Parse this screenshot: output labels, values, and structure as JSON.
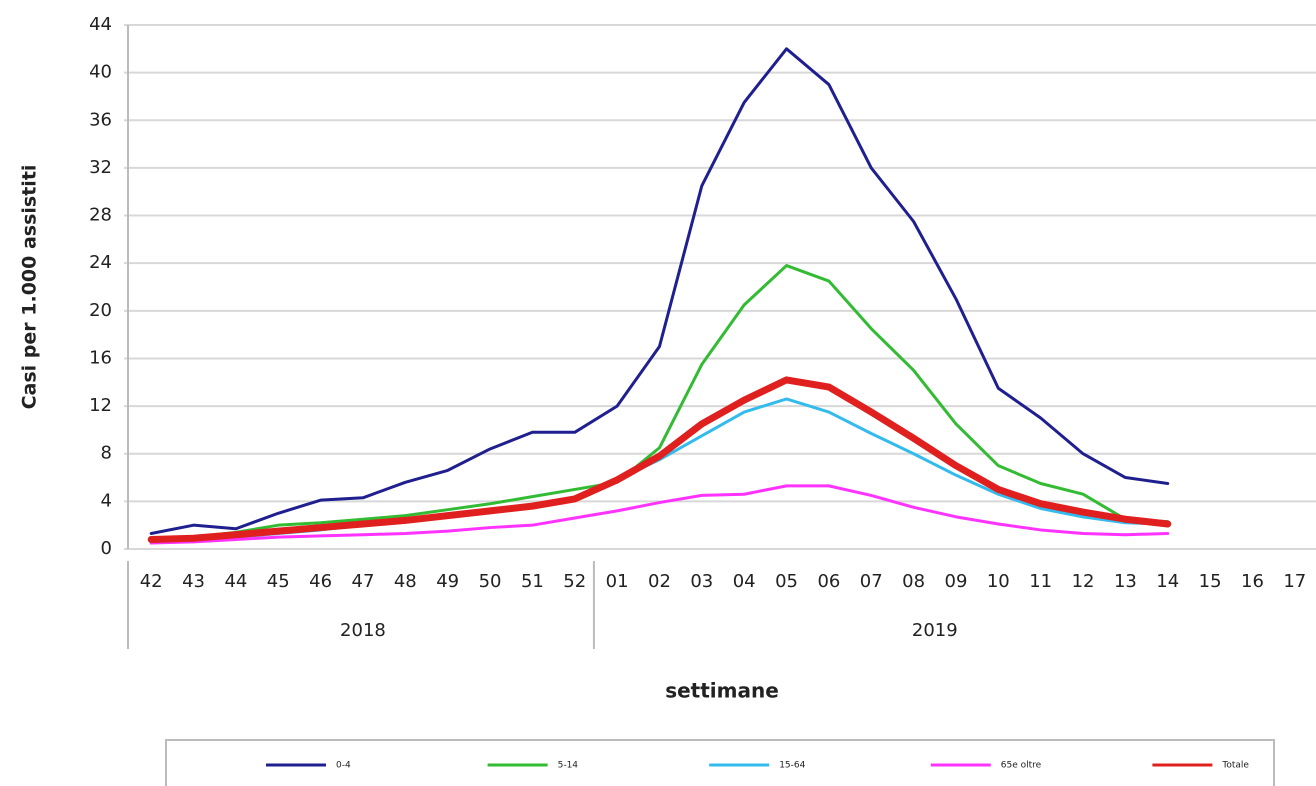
{
  "chart_data": {
    "type": "line",
    "y_label": "Casi per 1.000 assistiti",
    "x_label": "settimane",
    "group_labels": [
      "2018",
      "2019"
    ],
    "categories": [
      "42",
      "43",
      "44",
      "45",
      "46",
      "47",
      "48",
      "49",
      "50",
      "51",
      "52",
      "01",
      "02",
      "03",
      "04",
      "05",
      "06",
      "07",
      "08",
      "09",
      "10",
      "11",
      "12",
      "13",
      "14",
      "15",
      "16",
      "17"
    ],
    "ylim": [
      0,
      44
    ],
    "yticks": [
      0,
      4,
      8,
      12,
      16,
      20,
      24,
      28,
      32,
      36,
      40,
      44
    ],
    "grid": true,
    "legend": "bottom",
    "series": [
      {
        "name": "0-4",
        "color": "#1f1f8f",
        "width": 3,
        "values": [
          1.3,
          2.0,
          1.7,
          3.0,
          4.1,
          4.3,
          5.6,
          6.6,
          8.4,
          9.8,
          9.8,
          12.0,
          17.0,
          30.5,
          37.5,
          42.0,
          39.0,
          32.0,
          27.5,
          21.0,
          13.5,
          11.0,
          8.0,
          6.0,
          5.5,
          null,
          null,
          null
        ]
      },
      {
        "name": "5-14",
        "color": "#33bb33",
        "width": 3,
        "values": [
          0.8,
          1.0,
          1.4,
          2.0,
          2.2,
          2.5,
          2.8,
          3.3,
          3.8,
          4.4,
          5.0,
          5.6,
          8.5,
          15.5,
          20.5,
          23.8,
          22.5,
          18.5,
          15.0,
          10.5,
          7.0,
          5.5,
          4.6,
          2.5,
          2.3,
          null,
          null,
          null
        ]
      },
      {
        "name": "15-64",
        "color": "#33bbee",
        "width": 3,
        "values": [
          0.6,
          0.7,
          1.0,
          1.3,
          1.6,
          2.0,
          2.4,
          2.9,
          3.2,
          3.5,
          4.2,
          5.8,
          7.5,
          9.5,
          11.5,
          12.6,
          11.5,
          9.7,
          8.0,
          6.2,
          4.6,
          3.4,
          2.7,
          2.2,
          2.1,
          null,
          null,
          null
        ]
      },
      {
        "name": "65e oltre",
        "color": "#ff33ff",
        "width": 3,
        "values": [
          0.5,
          0.6,
          0.8,
          1.0,
          1.1,
          1.2,
          1.3,
          1.5,
          1.8,
          2.0,
          2.6,
          3.2,
          3.9,
          4.5,
          4.6,
          5.3,
          5.3,
          4.5,
          3.5,
          2.7,
          2.1,
          1.6,
          1.3,
          1.2,
          1.3,
          null,
          null,
          null
        ]
      },
      {
        "name": "Totale",
        "color": "#e0201f",
        "width": 7,
        "values": [
          0.8,
          0.9,
          1.2,
          1.5,
          1.8,
          2.1,
          2.4,
          2.8,
          3.2,
          3.6,
          4.2,
          5.8,
          7.8,
          10.5,
          12.5,
          14.2,
          13.6,
          11.5,
          9.3,
          7.0,
          5.0,
          3.8,
          3.1,
          2.5,
          2.1,
          null,
          null,
          null
        ]
      }
    ]
  }
}
